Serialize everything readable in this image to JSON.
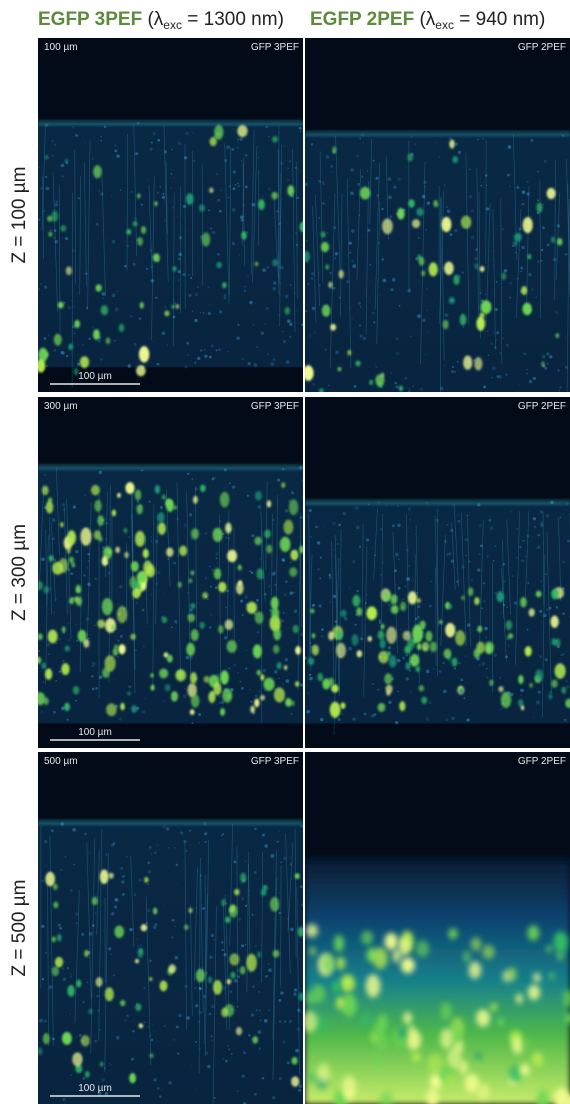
{
  "header": {
    "columns": [
      {
        "label": "EGFP 3PEF",
        "open": "(λ",
        "sub": "exc",
        "rest": " = 1300 nm)"
      },
      {
        "label": "EGFP 2PEF",
        "open": "(λ",
        "sub": "exc",
        "rest": " = 940 nm)"
      }
    ]
  },
  "rows": [
    {
      "label": "Z = 100 µm",
      "depth": "100 µm",
      "panels": [
        {
          "tag": "GFP 3PEF",
          "scalebar": "100 µm"
        },
        {
          "tag": "GFP 2PEF"
        }
      ]
    },
    {
      "label": "Z = 300 µm",
      "depth": "300 µm",
      "panels": [
        {
          "tag": "GFP 3PEF",
          "scalebar": "100 µm"
        },
        {
          "tag": "GFP 2PEF"
        }
      ]
    },
    {
      "label": "Z = 500 µm",
      "depth": "500 µm",
      "panels": [
        {
          "tag": "GFP 3PEF",
          "scalebar": "100 µm"
        },
        {
          "tag": "GFP 2PEF"
        }
      ]
    }
  ]
}
